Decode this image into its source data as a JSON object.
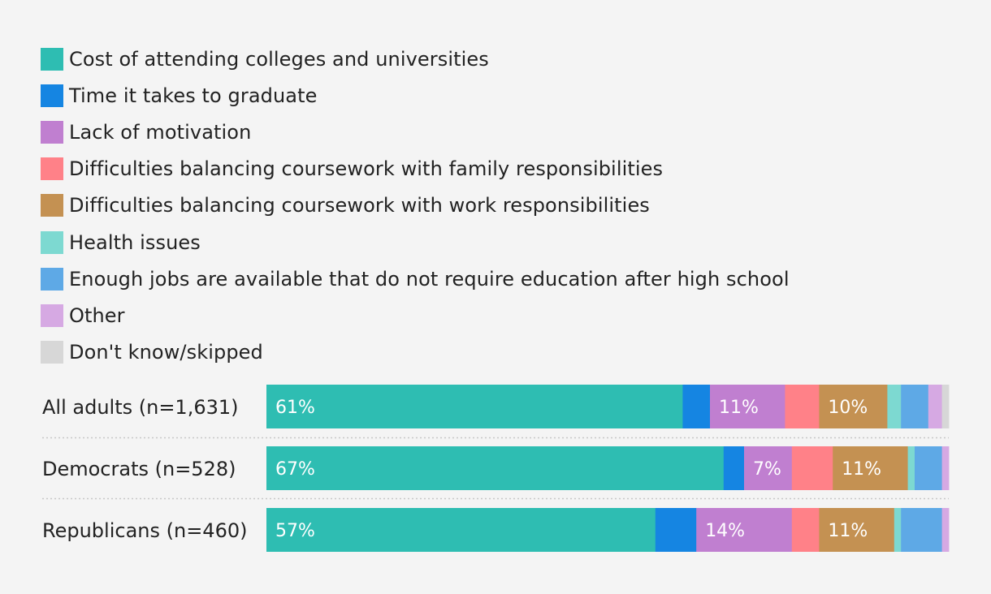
{
  "chart_data": {
    "type": "bar",
    "orientation": "horizontal",
    "stacked": true,
    "title": "",
    "xlabel": "",
    "ylabel": "",
    "xlim": [
      0,
      100
    ],
    "grid": false,
    "legend_position": "top",
    "categories": [
      "All adults (n=1,631)",
      "Democrats (n=528)",
      "Republicans (n=460)"
    ],
    "series": [
      {
        "name": "Cost of attending colleges and universities",
        "color": "#2ebdb2",
        "values": [
          61,
          67,
          57
        ]
      },
      {
        "name": "Time it takes to graduate",
        "color": "#1585e2",
        "values": [
          4,
          3,
          6
        ]
      },
      {
        "name": "Lack of motivation",
        "color": "#c07fd0",
        "values": [
          11,
          7,
          14
        ]
      },
      {
        "name": "Difficulties balancing coursework with family responsibilities",
        "color": "#ff8188",
        "values": [
          5,
          6,
          4
        ]
      },
      {
        "name": "Difficulties balancing coursework with work responsibilities",
        "color": "#c49152",
        "values": [
          10,
          11,
          11
        ]
      },
      {
        "name": "Health issues",
        "color": "#7dd9d1",
        "values": [
          2,
          1,
          1
        ]
      },
      {
        "name": "Enough jobs are available that do not require education after high school",
        "color": "#5ea9e6",
        "values": [
          4,
          4,
          6
        ]
      },
      {
        "name": "Other",
        "color": "#d6a9e3",
        "values": [
          2,
          1,
          1
        ]
      },
      {
        "name": "Don't know/skipped",
        "color": "#d7d7d7",
        "values": [
          1,
          0,
          0
        ]
      }
    ],
    "data_labels": [
      [
        "61%",
        "",
        "11%",
        "",
        "10%",
        "",
        "",
        "",
        ""
      ],
      [
        "67%",
        "",
        "7%",
        "",
        "11%",
        "",
        "",
        "",
        ""
      ],
      [
        "57%",
        "",
        "14%",
        "",
        "11%",
        "",
        "",
        "",
        ""
      ]
    ]
  }
}
